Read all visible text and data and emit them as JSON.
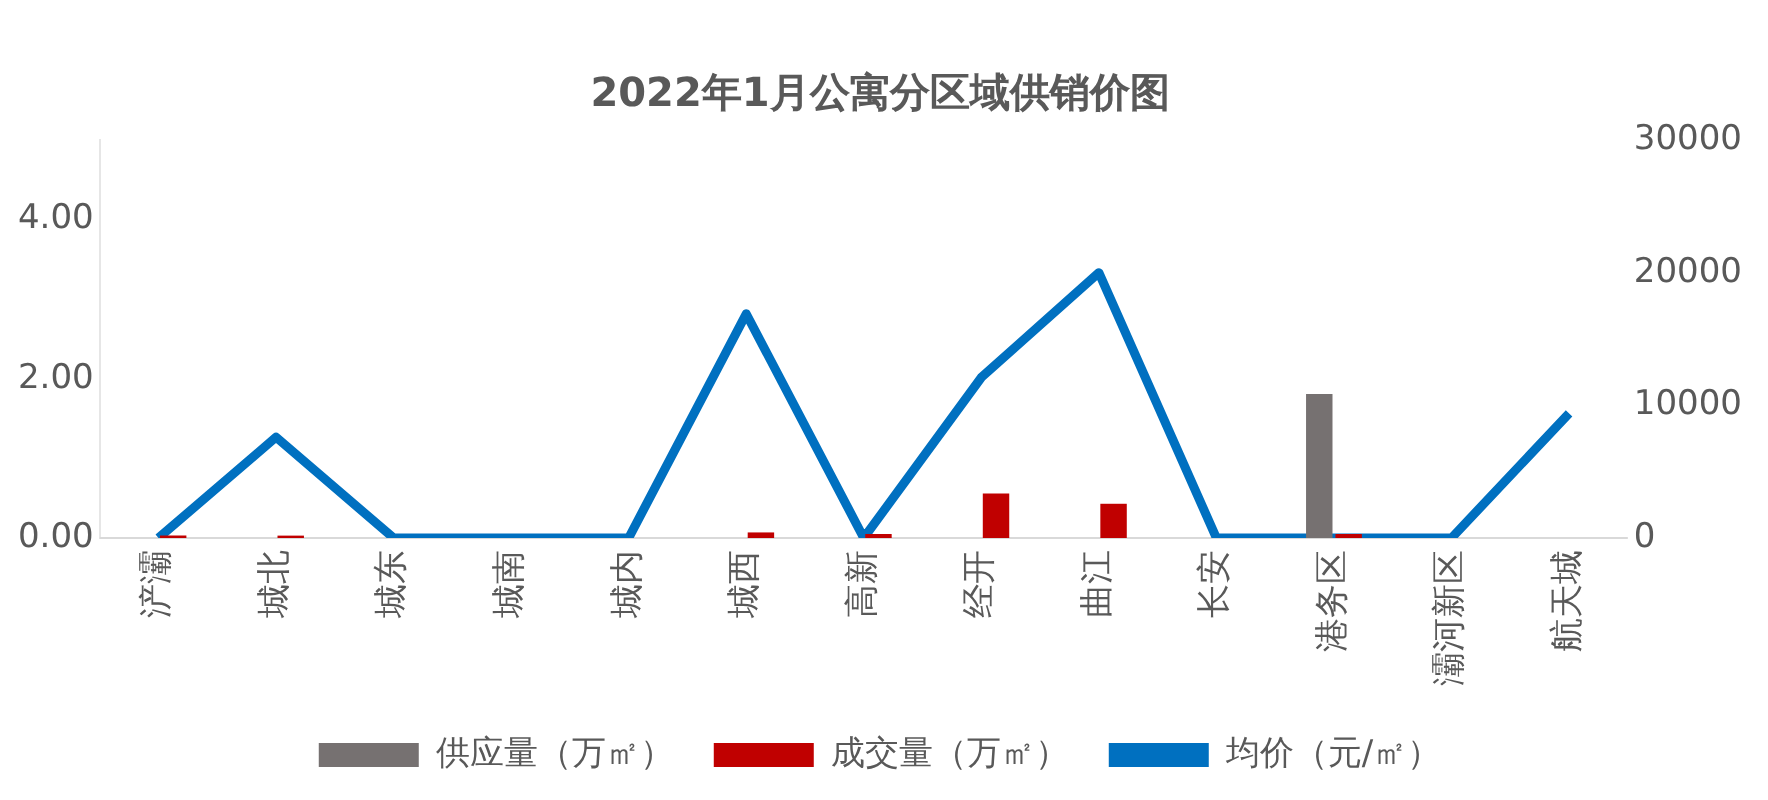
{
  "chart_data": {
    "type": "bar",
    "title": "2022年1月公寓分区域供销价图",
    "categories": [
      "浐灞",
      "城北",
      "城东",
      "城南",
      "城内",
      "城西",
      "高新",
      "经开",
      "曲江",
      "长安",
      "港务区",
      "灞河新区",
      "航天城"
    ],
    "series": [
      {
        "name": "供应量（万㎡）",
        "color": "#767171",
        "values": [
          0,
          0,
          0,
          0,
          0,
          0,
          0,
          0,
          0,
          0,
          1.81,
          0,
          0
        ]
      },
      {
        "name": "成交量（万㎡）",
        "color": "#c00000",
        "values": [
          0.03,
          0.03,
          0,
          0,
          0,
          0.07,
          0.05,
          0.56,
          0.43,
          0,
          0.05,
          0,
          0
        ]
      },
      {
        "name": "均价（元/㎡）",
        "type": "line",
        "axis": "y2",
        "color": "#0070c0",
        "values": [
          0,
          7600,
          0,
          0,
          0,
          16900,
          0,
          12100,
          20000,
          0,
          0,
          0,
          9400
        ]
      }
    ],
    "ylim": [
      0,
      5
    ],
    "yticks": [
      {
        "value": 0,
        "label": "0.00"
      },
      {
        "value": 2,
        "label": "2.00"
      },
      {
        "value": 4,
        "label": "4.00"
      }
    ],
    "y2lim": [
      0,
      30000
    ],
    "y2ticks": [
      0,
      10000,
      20000,
      30000
    ],
    "grid": false,
    "legend": "bottom",
    "marker": "none"
  }
}
